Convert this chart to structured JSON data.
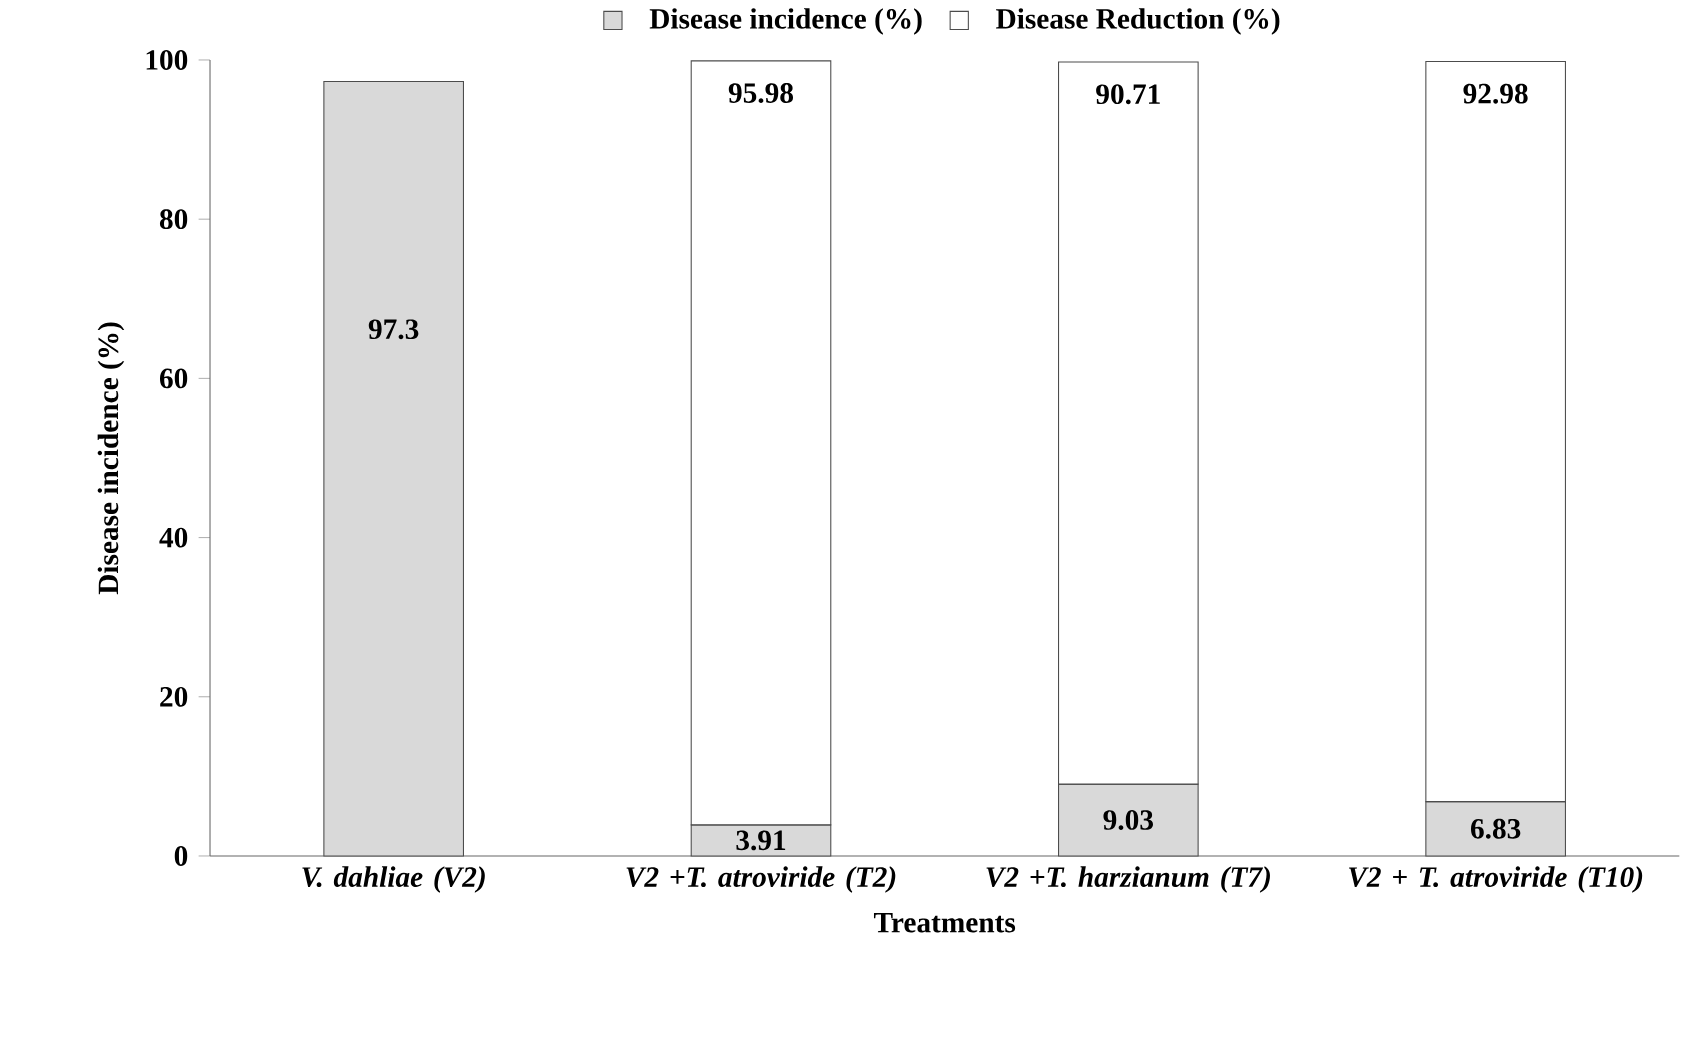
{
  "chart_data": {
    "type": "bar",
    "stacked": true,
    "xlabel": "Treatments",
    "ylabel": "Disease incidence (%)",
    "categories": [
      "V. dahliae (V2)",
      "V2 +T. atroviride (T2)",
      "V2 +T. harzianum (T7)",
      "V2 + T. atroviride (T10)"
    ],
    "series": [
      {
        "name": "Disease incidence (%)",
        "color": "#d9d9d9",
        "values": [
          97.3,
          3.91,
          9.03,
          6.83
        ]
      },
      {
        "name": "Disease Reduction (%)",
        "color": "#ffffff",
        "values": [
          null,
          95.98,
          90.71,
          92.98
        ]
      }
    ],
    "ylim": [
      0,
      100
    ],
    "yticks": [
      0,
      20,
      40,
      60,
      80,
      100
    ],
    "data_labels": true,
    "legend": "top",
    "grid": false
  }
}
